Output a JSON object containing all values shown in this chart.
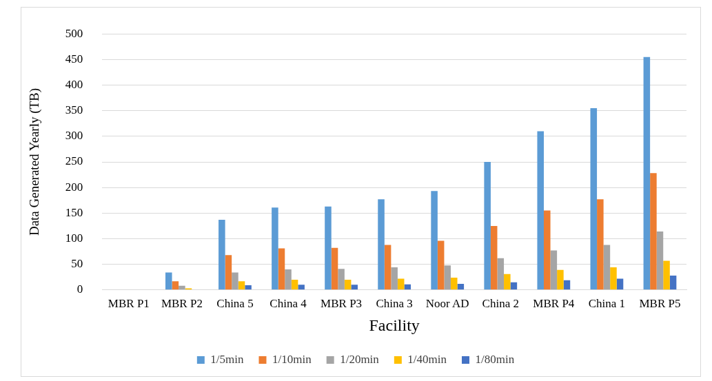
{
  "chart_data": {
    "type": "bar",
    "xlabel": "Facility",
    "ylabel": "Data Generated Yearly (TB)",
    "categories": [
      "MBR P1",
      "MBR P2",
      "China 5",
      "China 4",
      "MBR P3",
      "China 3",
      "Noor AD",
      "China 2",
      "MBR P4",
      "China 1",
      "MBR P5"
    ],
    "series": [
      {
        "name": "1/5min",
        "color": "#5b9bd5",
        "values": [
          0,
          34,
          137,
          161,
          163,
          177,
          193,
          250,
          310,
          355,
          455
        ]
      },
      {
        "name": "1/10min",
        "color": "#ed7d31",
        "values": [
          0,
          17,
          68,
          81,
          82,
          88,
          96,
          125,
          155,
          177,
          228
        ]
      },
      {
        "name": "1/20min",
        "color": "#a5a5a5",
        "values": [
          0,
          8,
          34,
          40,
          41,
          44,
          48,
          62,
          77,
          88,
          114
        ]
      },
      {
        "name": "1/40min",
        "color": "#ffc000",
        "values": [
          0,
          3,
          17,
          20,
          20,
          22,
          24,
          31,
          39,
          44,
          57
        ]
      },
      {
        "name": "1/80min",
        "color": "#4472c4",
        "values": [
          0,
          0,
          9,
          10,
          10,
          11,
          12,
          15,
          19,
          22,
          28
        ]
      }
    ],
    "ylim": [
      0,
      500
    ],
    "yticks": [
      0,
      50,
      100,
      150,
      200,
      250,
      300,
      350,
      400,
      450,
      500
    ],
    "grid": "y",
    "legend": "bottom"
  }
}
